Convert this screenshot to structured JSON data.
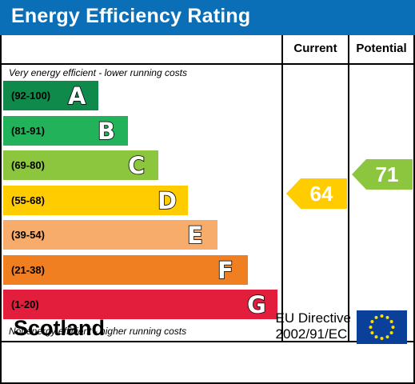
{
  "header": {
    "title": "Energy Efficiency Rating"
  },
  "columns": {
    "current": "Current",
    "potential": "Potential"
  },
  "notes": {
    "top": "Very energy efficient - lower running costs",
    "bottom": "Not energy efficient - higher running costs"
  },
  "bands": [
    {
      "range": "(92-100)",
      "letter": "A",
      "color": "#0f8a4a"
    },
    {
      "range": "(81-91)",
      "letter": "B",
      "color": "#22b25a"
    },
    {
      "range": "(69-80)",
      "letter": "C",
      "color": "#8cc63f"
    },
    {
      "range": "(55-68)",
      "letter": "D",
      "color": "#ffcc00"
    },
    {
      "range": "(39-54)",
      "letter": "E",
      "color": "#f7ac6b"
    },
    {
      "range": "(21-38)",
      "letter": "F",
      "color": "#f07f22"
    },
    {
      "range": "(1-20)",
      "letter": "G",
      "color": "#e31d3c"
    }
  ],
  "ratings": {
    "current": {
      "value": "64",
      "band": "D",
      "color": "#ffcc00"
    },
    "potential": {
      "value": "71",
      "band": "C",
      "color": "#8cc63f"
    }
  },
  "footer": {
    "country": "Scotland",
    "directive_line1": "EU Directive",
    "directive_line2": "2002/91/EC",
    "flag": "eu-flag-icon"
  }
}
